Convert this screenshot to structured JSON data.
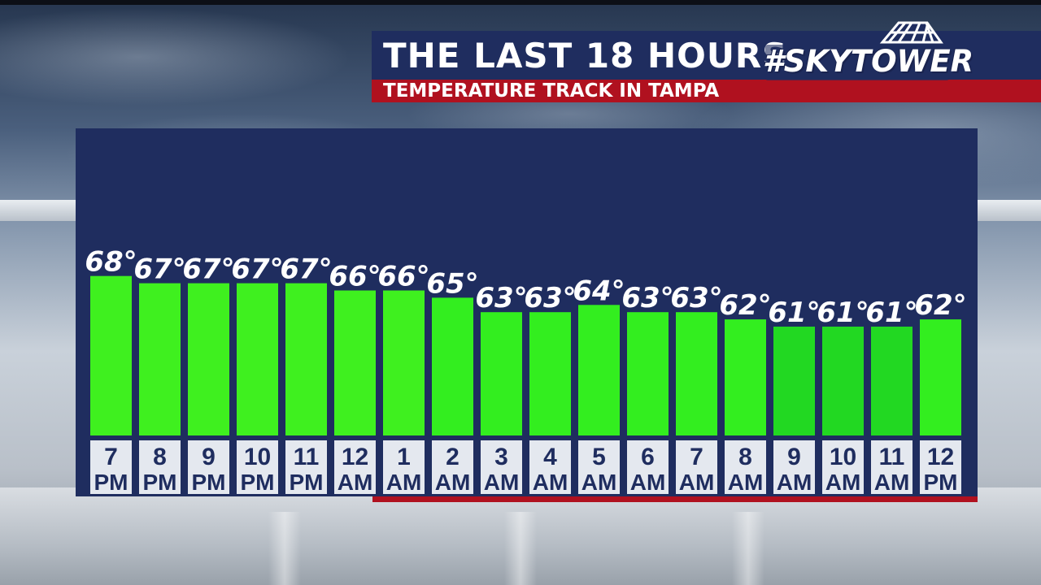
{
  "header": {
    "title": "THE LAST 18 HOURS",
    "subtitle": "TEMPERATURE TRACK IN TAMPA",
    "logo_text": "#SKYTOWER"
  },
  "colors": {
    "panel": "#1f2d5f",
    "accent_red": "#b0111f",
    "bar_bright": "#33ee1f",
    "bar_dim": "#22d822",
    "label_box": "#e4e8ef"
  },
  "chart_data": {
    "type": "bar",
    "title": "THE LAST 18 HOURS",
    "subtitle": "TEMPERATURE TRACK IN TAMPA",
    "categories": [
      [
        "7",
        "PM"
      ],
      [
        "8",
        "PM"
      ],
      [
        "9",
        "PM"
      ],
      [
        "10",
        "PM"
      ],
      [
        "11",
        "PM"
      ],
      [
        "12",
        "AM"
      ],
      [
        "1",
        "AM"
      ],
      [
        "2",
        "AM"
      ],
      [
        "3",
        "AM"
      ],
      [
        "4",
        "AM"
      ],
      [
        "5",
        "AM"
      ],
      [
        "6",
        "AM"
      ],
      [
        "7",
        "AM"
      ],
      [
        "8",
        "AM"
      ],
      [
        "9",
        "AM"
      ],
      [
        "10",
        "AM"
      ],
      [
        "11",
        "AM"
      ],
      [
        "12",
        "PM"
      ]
    ],
    "values": [
      68,
      67,
      67,
      67,
      67,
      66,
      66,
      65,
      63,
      63,
      64,
      63,
      63,
      62,
      61,
      61,
      61,
      62
    ],
    "value_labels": [
      "68°",
      "67°",
      "67°",
      "67°",
      "67°",
      "66°",
      "66°",
      "65°",
      "63°",
      "63°",
      "64°",
      "63°",
      "63°",
      "62°",
      "61°",
      "61°",
      "61°",
      "62°"
    ],
    "unit": "°",
    "grid": false,
    "legend": "none"
  }
}
